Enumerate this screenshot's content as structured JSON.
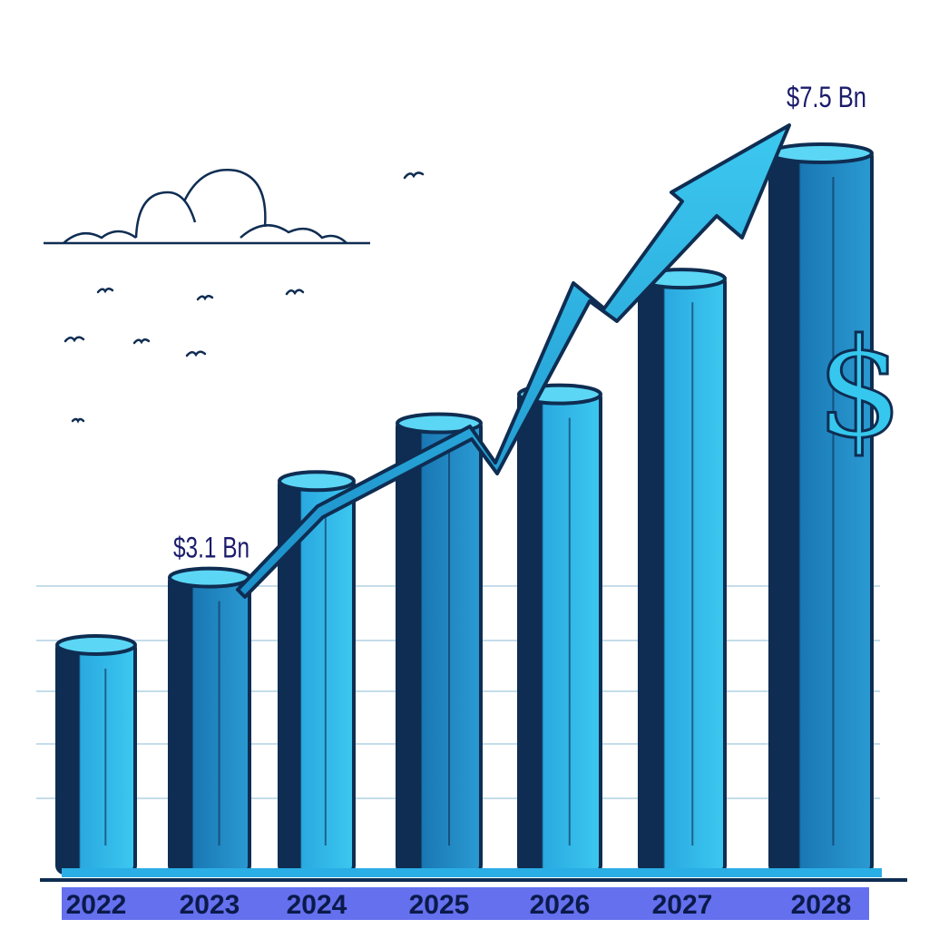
{
  "chart_data": {
    "type": "bar",
    "categories": [
      "2022",
      "2023",
      "2024",
      "2025",
      "2026",
      "2027",
      "2028"
    ],
    "values": [
      2.4,
      3.1,
      4.1,
      4.7,
      5.0,
      6.2,
      7.5
    ],
    "data_labels": [
      {
        "category": "2023",
        "text": "$3.1 Bn"
      },
      {
        "category": "2028",
        "text": "$7.5 Bn"
      }
    ],
    "title": "",
    "xlabel": "",
    "ylabel": "",
    "ylim": [
      0,
      8
    ],
    "grid": true,
    "trend_arrow": true,
    "colors": {
      "bar_light": "#33c3ee",
      "bar_mid": "#1b8fc9",
      "bar_dark": "#0f2d52",
      "bar_top": "#5cd6f5",
      "label_band": "#6470ee",
      "arrow_fill": "#2aaee6",
      "outline": "#0f2d52"
    },
    "icons": [
      "dollar-sign-icon",
      "cloud-icon",
      "bird-icon"
    ]
  },
  "decoration": {
    "dollar_symbol": "$"
  }
}
